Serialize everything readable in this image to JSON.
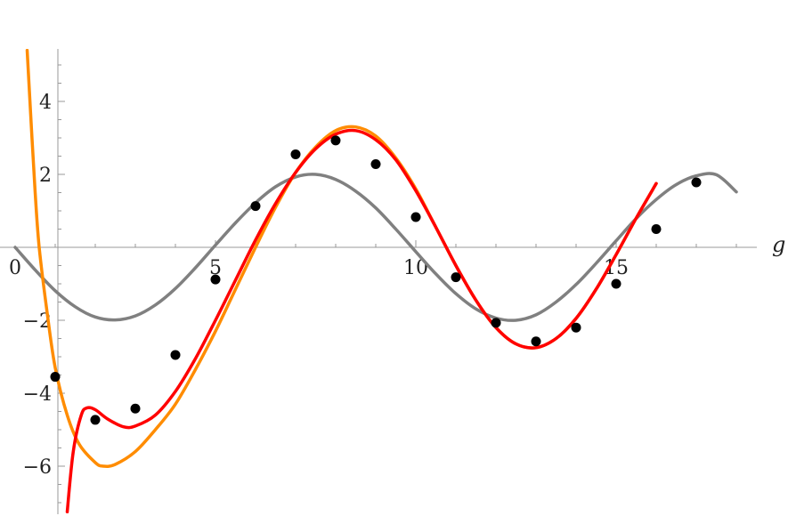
{
  "chart_data": {
    "type": "line",
    "title": "",
    "xlabel": "g",
    "ylabel": "",
    "xlim": [
      -1.35,
      18.1
    ],
    "ylim": [
      -7.2,
      5.4
    ],
    "grid": false,
    "legend": "none",
    "x_ticks": [
      {
        "value": 0,
        "label": "0"
      },
      {
        "value": 5,
        "label": "5"
      },
      {
        "value": 10,
        "label": "10"
      },
      {
        "value": 15,
        "label": "15"
      }
    ],
    "y_ticks": [
      {
        "value": -6,
        "label": "−6"
      },
      {
        "value": -4,
        "label": "−4"
      },
      {
        "value": -2,
        "label": "−2"
      },
      {
        "value": 2,
        "label": "2"
      },
      {
        "value": 4,
        "label": "4"
      }
    ],
    "series": [
      {
        "color": "#808080",
        "style": "line",
        "points": [
          [
            0,
            0
          ],
          [
            0.5,
            -0.62
          ],
          [
            1,
            -1.19
          ],
          [
            1.5,
            -1.63
          ],
          [
            2,
            -1.91
          ],
          [
            2.5,
            -1.99
          ],
          [
            3,
            -1.88
          ],
          [
            3.5,
            -1.58
          ],
          [
            4,
            -1.13
          ],
          [
            4.5,
            -0.56
          ],
          [
            5,
            0.06
          ],
          [
            5.5,
            0.67
          ],
          [
            6,
            1.22
          ],
          [
            6.5,
            1.66
          ],
          [
            7,
            1.93
          ],
          [
            7.5,
            2.0
          ],
          [
            8,
            1.86
          ],
          [
            8.5,
            1.54
          ],
          [
            9,
            1.08
          ],
          [
            9.5,
            0.5
          ],
          [
            10,
            -0.12
          ],
          [
            10.5,
            -0.73
          ],
          [
            11,
            -1.27
          ],
          [
            11.5,
            -1.69
          ],
          [
            12,
            -1.94
          ],
          [
            12.5,
            -2.0
          ],
          [
            13,
            -1.85
          ],
          [
            13.5,
            -1.5
          ],
          [
            14,
            -1.02
          ],
          [
            14.5,
            -0.44
          ],
          [
            15,
            0.18
          ],
          [
            15.5,
            0.79
          ],
          [
            16,
            1.31
          ],
          [
            16.5,
            1.72
          ],
          [
            17,
            1.96
          ],
          [
            17.5,
            1.99
          ],
          [
            18,
            1.52
          ]
        ]
      },
      {
        "color": "#FF8C00",
        "style": "line",
        "points": [
          [
            0.3,
            5.4
          ],
          [
            0.4,
            3.4
          ],
          [
            0.5,
            1.5
          ],
          [
            0.6,
            0.0
          ],
          [
            0.8,
            -1.8
          ],
          [
            1,
            -3.3
          ],
          [
            1.3,
            -4.6
          ],
          [
            1.6,
            -5.4
          ],
          [
            2,
            -5.9
          ],
          [
            2.2,
            -6.0
          ],
          [
            2.5,
            -5.95
          ],
          [
            3,
            -5.6
          ],
          [
            3.5,
            -5.0
          ],
          [
            4,
            -4.3
          ],
          [
            4.5,
            -3.35
          ],
          [
            5,
            -2.3
          ],
          [
            5.5,
            -1.15
          ],
          [
            6,
            0.0
          ],
          [
            6.5,
            1.1
          ],
          [
            7,
            2.05
          ],
          [
            7.5,
            2.75
          ],
          [
            8,
            3.2
          ],
          [
            8.5,
            3.3
          ],
          [
            9,
            3.05
          ],
          [
            9.5,
            2.45
          ],
          [
            10,
            1.6
          ],
          [
            10.5,
            0.55
          ],
          [
            11,
            -0.5
          ],
          [
            11.5,
            -1.45
          ],
          [
            12,
            -2.2
          ],
          [
            12.5,
            -2.65
          ],
          [
            13,
            -2.75
          ],
          [
            13.5,
            -2.5
          ],
          [
            14,
            -1.95
          ],
          [
            14.5,
            -1.15
          ],
          [
            15,
            -0.2
          ],
          [
            15.5,
            0.8
          ],
          [
            16,
            1.75
          ]
        ]
      },
      {
        "color": "#FF0000",
        "style": "line",
        "points": [
          [
            1.3,
            -7.25
          ],
          [
            1.45,
            -5.6
          ],
          [
            1.65,
            -4.6
          ],
          [
            1.8,
            -4.4
          ],
          [
            2,
            -4.45
          ],
          [
            2.3,
            -4.7
          ],
          [
            2.7,
            -4.92
          ],
          [
            3,
            -4.9
          ],
          [
            3.5,
            -4.6
          ],
          [
            4,
            -3.95
          ],
          [
            4.5,
            -3.05
          ],
          [
            5,
            -2.0
          ],
          [
            5.5,
            -0.9
          ],
          [
            6,
            0.2
          ],
          [
            6.5,
            1.2
          ],
          [
            7,
            2.05
          ],
          [
            7.5,
            2.7
          ],
          [
            8,
            3.1
          ],
          [
            8.5,
            3.2
          ],
          [
            9,
            2.95
          ],
          [
            9.5,
            2.4
          ],
          [
            10,
            1.55
          ],
          [
            10.5,
            0.55
          ],
          [
            11,
            -0.5
          ],
          [
            11.5,
            -1.45
          ],
          [
            12,
            -2.2
          ],
          [
            12.5,
            -2.65
          ],
          [
            13,
            -2.75
          ],
          [
            13.5,
            -2.5
          ],
          [
            14,
            -1.95
          ],
          [
            14.5,
            -1.15
          ],
          [
            15,
            -0.2
          ],
          [
            15.5,
            0.8
          ],
          [
            16,
            1.75
          ]
        ]
      },
      {
        "color": "#000000",
        "style": "markers",
        "points": [
          [
            1,
            -3.55
          ],
          [
            2,
            -4.73
          ],
          [
            3,
            -4.42
          ],
          [
            4,
            -2.95
          ],
          [
            5,
            -0.88
          ],
          [
            6,
            1.13
          ],
          [
            7,
            2.55
          ],
          [
            8,
            2.93
          ],
          [
            9,
            2.28
          ],
          [
            10,
            0.83
          ],
          [
            11,
            -0.82
          ],
          [
            12,
            -2.07
          ],
          [
            13,
            -2.58
          ],
          [
            14,
            -2.2
          ],
          [
            15,
            -1.0
          ],
          [
            16,
            0.5
          ],
          [
            17,
            1.78
          ]
        ]
      }
    ]
  }
}
